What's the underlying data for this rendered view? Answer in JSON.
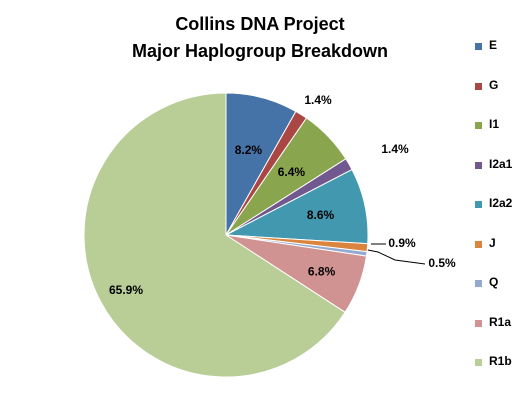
{
  "chart_data": {
    "type": "pie",
    "title": "Collins DNA Project",
    "subtitle": "Major Haplogroup  Breakdown",
    "legend_position": "right",
    "slices": [
      {
        "label": "E",
        "value": 8.2,
        "data_label": "8.2%",
        "color": "#4572A7"
      },
      {
        "label": "G",
        "value": 1.4,
        "data_label": "1.4%",
        "color": "#AA4643"
      },
      {
        "label": "I1",
        "value": 6.4,
        "data_label": "6.4%",
        "color": "#89A54E"
      },
      {
        "label": "I2a1",
        "value": 1.4,
        "data_label": "1.4%",
        "color": "#71588F"
      },
      {
        "label": "I2a2",
        "value": 8.6,
        "data_label": "8.6%",
        "color": "#4198AF"
      },
      {
        "label": "J",
        "value": 0.9,
        "data_label": "0.9%",
        "color": "#DB843D"
      },
      {
        "label": "Q",
        "value": 0.5,
        "data_label": "0.5%",
        "color": "#93A9CF"
      },
      {
        "label": "R1a",
        "value": 6.8,
        "data_label": "6.8%",
        "color": "#D19392"
      },
      {
        "label": "R1b",
        "value": 65.9,
        "data_label": "65.9%",
        "color": "#B9CD96"
      }
    ]
  }
}
